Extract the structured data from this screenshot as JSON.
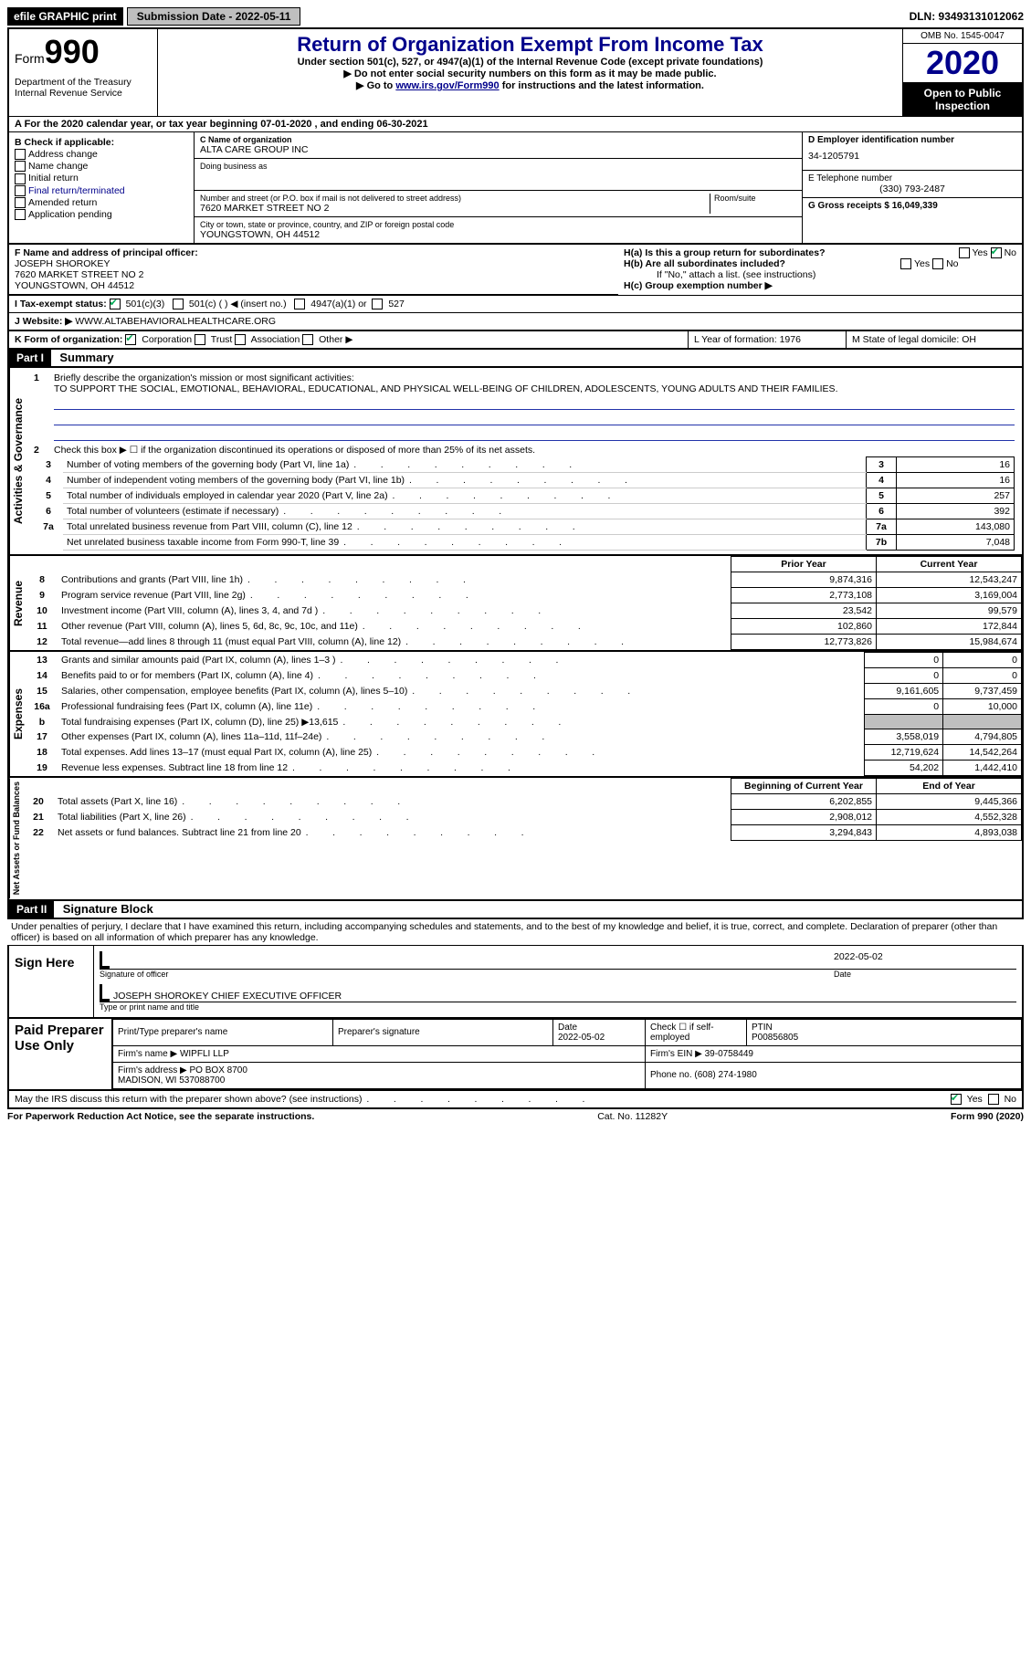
{
  "topbar": {
    "efile_label": "efile GRAPHIC print",
    "submission_label": "Submission Date - 2022-05-11",
    "dln_label": "DLN: 93493131012062"
  },
  "header": {
    "form_prefix": "Form",
    "form_no": "990",
    "dept": "Department of the Treasury\nInternal Revenue Service",
    "title": "Return of Organization Exempt From Income Tax",
    "subtitle": "Under section 501(c), 527, or 4947(a)(1) of the Internal Revenue Code (except private foundations)",
    "arrow1": "▶ Do not enter social security numbers on this form as it may be made public.",
    "arrow2_pre": "▶ Go to ",
    "arrow2_link": "www.irs.gov/Form990",
    "arrow2_post": " for instructions and the latest information.",
    "omb": "OMB No. 1545-0047",
    "year": "2020",
    "open_public": "Open to Public Inspection"
  },
  "lineA": "A For the 2020 calendar year, or tax year beginning 07-01-2020    , and ending 06-30-2021",
  "colB": {
    "header": "B Check if applicable:",
    "items": [
      "Address change",
      "Name change",
      "Initial return",
      "Final return/terminated",
      "Amended return",
      "Application pending"
    ]
  },
  "colC": {
    "c": "C Name of organization",
    "name": "ALTA CARE GROUP INC",
    "dba": "Doing business as",
    "addr_lbl": "Number and street (or P.O. box if mail is not delivered to street address)",
    "room": "Room/suite",
    "addr": "7620 MARKET STREET NO 2",
    "city_lbl": "City or town, state or province, country, and ZIP or foreign postal code",
    "city": "YOUNGSTOWN, OH  44512"
  },
  "colD": {
    "d": "D Employer identification number",
    "ein": "34-1205791",
    "e": "E Telephone number",
    "phone": "(330) 793-2487",
    "g": "G Gross receipts $ 16,049,339"
  },
  "rowF": {
    "f": "F Name and address of principal officer:",
    "name": "JOSEPH SHOROKEY",
    "addr1": "7620 MARKET STREET NO 2",
    "addr2": "YOUNGSTOWN, OH  44512",
    "ha": "H(a)  Is this a group return for subordinates?",
    "hb": "H(b)  Are all subordinates included?",
    "hb_note": "If \"No,\" attach a list. (see instructions)",
    "hc": "H(c)  Group exemption number ▶",
    "yes": "Yes",
    "no": "No"
  },
  "rowI": {
    "i": "I    Tax-exempt status:",
    "c3": "501(c)(3)",
    "c": "501(c) (   ) ◀ (insert no.)",
    "a1": "4947(a)(1) or",
    "p527": "527",
    "j": "J   Website: ▶",
    "site": "WWW.ALTABEHAVIORALHEALTHCARE.ORG"
  },
  "rowK": {
    "k": "K Form of organization:",
    "corp": "Corporation",
    "trust": "Trust",
    "assoc": "Association",
    "other": "Other ▶",
    "l": "L Year of formation: 1976",
    "m": "M State of legal domicile: OH"
  },
  "part1": {
    "header": "Part I",
    "title": "Summary",
    "brief_lbl": "Briefly describe the organization's mission or most significant activities:",
    "brief": "TO SUPPORT THE SOCIAL, EMOTIONAL, BEHAVIORAL, EDUCATIONAL, AND PHYSICAL WELL-BEING OF CHILDREN, ADOLESCENTS, YOUNG ADULTS AND THEIR FAMILIES.",
    "line2": "Check this box ▶ ☐  if the organization discontinued its operations or disposed of more than 25% of its net assets.",
    "gov_label": "Activities & Governance",
    "lines_gov": [
      {
        "n": "3",
        "t": "Number of voting members of the governing body (Part VI, line 1a)",
        "box": "3",
        "v": "16"
      },
      {
        "n": "4",
        "t": "Number of independent voting members of the governing body (Part VI, line 1b)",
        "box": "4",
        "v": "16"
      },
      {
        "n": "5",
        "t": "Total number of individuals employed in calendar year 2020 (Part V, line 2a)",
        "box": "5",
        "v": "257"
      },
      {
        "n": "6",
        "t": "Total number of volunteers (estimate if necessary)",
        "box": "6",
        "v": "392"
      },
      {
        "n": "7a",
        "t": "Total unrelated business revenue from Part VIII, column (C), line 12",
        "box": "7a",
        "v": "143,080"
      },
      {
        "n": "",
        "t": "Net unrelated business taxable income from Form 990-T, line 39",
        "box": "7b",
        "v": "7,048"
      }
    ],
    "col_prior": "Prior Year",
    "col_curr": "Current Year",
    "rev_label": "Revenue",
    "rows_rev": [
      {
        "n": "8",
        "t": "Contributions and grants (Part VIII, line 1h)",
        "p": "9,874,316",
        "c": "12,543,247"
      },
      {
        "n": "9",
        "t": "Program service revenue (Part VIII, line 2g)",
        "p": "2,773,108",
        "c": "3,169,004"
      },
      {
        "n": "10",
        "t": "Investment income (Part VIII, column (A), lines 3, 4, and 7d )",
        "p": "23,542",
        "c": "99,579"
      },
      {
        "n": "11",
        "t": "Other revenue (Part VIII, column (A), lines 5, 6d, 8c, 9c, 10c, and 11e)",
        "p": "102,860",
        "c": "172,844"
      },
      {
        "n": "12",
        "t": "Total revenue—add lines 8 through 11 (must equal Part VIII, column (A), line 12)",
        "p": "12,773,826",
        "c": "15,984,674"
      }
    ],
    "exp_label": "Expenses",
    "rows_exp": [
      {
        "n": "13",
        "t": "Grants and similar amounts paid (Part IX, column (A), lines 1–3 )",
        "p": "0",
        "c": "0"
      },
      {
        "n": "14",
        "t": "Benefits paid to or for members (Part IX, column (A), line 4)",
        "p": "0",
        "c": "0"
      },
      {
        "n": "15",
        "t": "Salaries, other compensation, employee benefits (Part IX, column (A), lines 5–10)",
        "p": "9,161,605",
        "c": "9,737,459"
      },
      {
        "n": "16a",
        "t": "Professional fundraising fees (Part IX, column (A), line 11e)",
        "p": "0",
        "c": "10,000"
      },
      {
        "n": "b",
        "t": "Total fundraising expenses (Part IX, column (D), line 25) ▶13,615",
        "p": "shade",
        "c": "shade"
      },
      {
        "n": "17",
        "t": "Other expenses (Part IX, column (A), lines 11a–11d, 11f–24e)",
        "p": "3,558,019",
        "c": "4,794,805"
      },
      {
        "n": "18",
        "t": "Total expenses. Add lines 13–17 (must equal Part IX, column (A), line 25)",
        "p": "12,719,624",
        "c": "14,542,264"
      },
      {
        "n": "19",
        "t": "Revenue less expenses. Subtract line 18 from line 12",
        "p": "54,202",
        "c": "1,442,410"
      }
    ],
    "na_label": "Net Assets or Fund Balances",
    "col_beg": "Beginning of Current Year",
    "col_end": "End of Year",
    "rows_na": [
      {
        "n": "20",
        "t": "Total assets (Part X, line 16)",
        "p": "6,202,855",
        "c": "9,445,366"
      },
      {
        "n": "21",
        "t": "Total liabilities (Part X, line 26)",
        "p": "2,908,012",
        "c": "4,552,328"
      },
      {
        "n": "22",
        "t": "Net assets or fund balances. Subtract line 21 from line 20",
        "p": "3,294,843",
        "c": "4,893,038"
      }
    ]
  },
  "part2": {
    "header": "Part II",
    "title": "Signature Block",
    "penalties": "Under penalties of perjury, I declare that I have examined this return, including accompanying schedules and statements, and to the best of my knowledge and belief, it is true, correct, and complete. Declaration of preparer (other than officer) is based on all information of which preparer has any knowledge.",
    "sign_here": "Sign Here",
    "sig_officer": "Signature of officer",
    "date": "Date",
    "sig_date": "2022-05-02",
    "name_title": "JOSEPH SHOROKEY CHIEF EXECUTIVE OFFICER",
    "type_or_print": "Type or print name and title",
    "paid": "Paid Preparer Use Only",
    "prep_name_lbl": "Print/Type preparer's name",
    "prep_sig_lbl": "Preparer's signature",
    "prep_date_lbl": "Date",
    "prep_date": "2022-05-02",
    "self_emp": "Check ☐  if self-employed",
    "ptin_lbl": "PTIN",
    "ptin": "P00856805",
    "firm_name_lbl": "Firm's name    ▶",
    "firm_name": "WIPFLI LLP",
    "firm_ein_lbl": "Firm's EIN ▶",
    "firm_ein": "39-0758449",
    "firm_addr_lbl": "Firm's address ▶",
    "firm_addr": "PO BOX 8700\nMADISON, WI  537088700",
    "phone_lbl": "Phone no.",
    "phone": "(608) 274-1980",
    "discuss": "May the IRS discuss this return with the preparer shown above? (see instructions)",
    "yes": "Yes",
    "no": "No"
  },
  "footer": {
    "left": "For Paperwork Reduction Act Notice, see the separate instructions.",
    "mid": "Cat. No. 11282Y",
    "right": "Form 990 (2020)"
  }
}
